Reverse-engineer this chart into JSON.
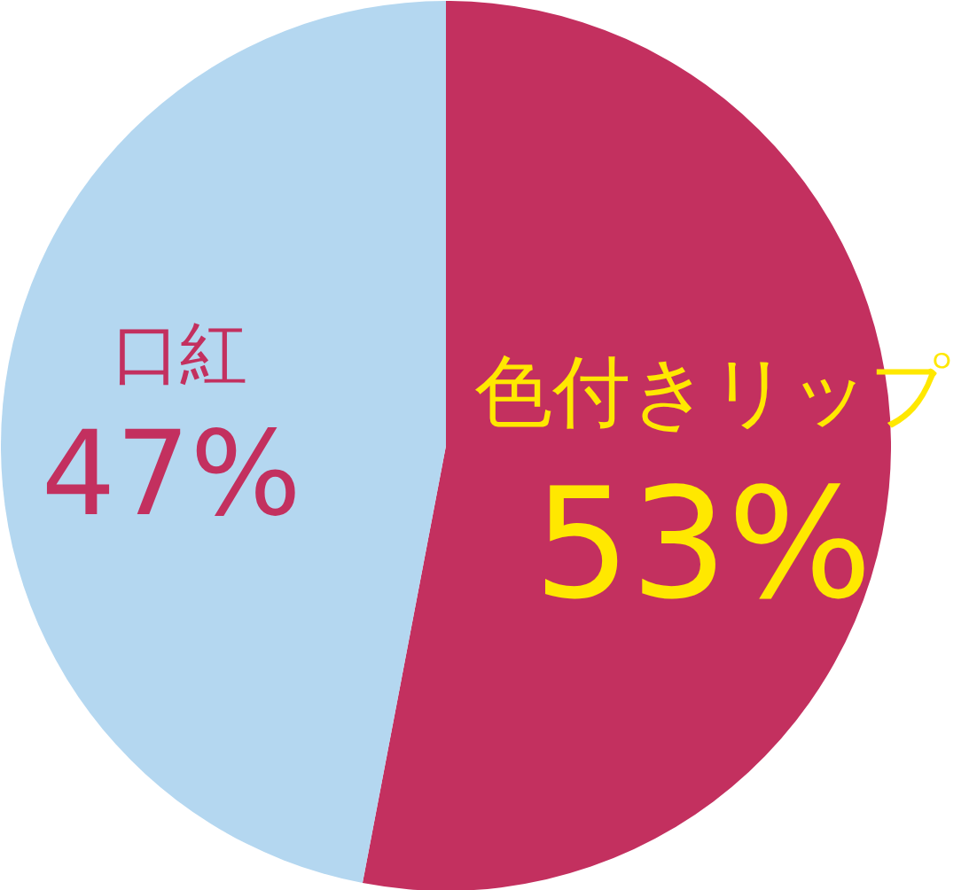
{
  "chart_data": {
    "type": "pie",
    "categories": [
      "色付きリップ",
      "口紅"
    ],
    "values": [
      53,
      47
    ],
    "colors": [
      "#c3305f",
      "#b4d7f0"
    ],
    "value_labels": [
      "53%",
      "47%"
    ]
  }
}
